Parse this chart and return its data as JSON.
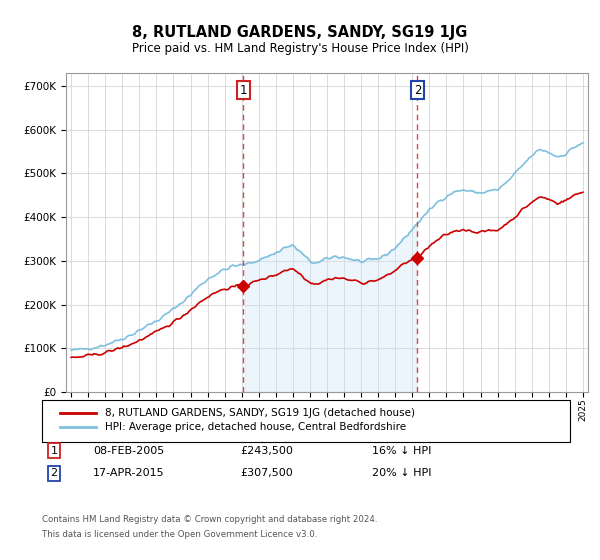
{
  "title": "8, RUTLAND GARDENS, SANDY, SG19 1JG",
  "subtitle": "Price paid vs. HM Land Registry's House Price Index (HPI)",
  "hpi_color": "#7fbfdf",
  "hpi_fill_color": "#c8e4f4",
  "price_color": "#cc0000",
  "sale1_date": "08-FEB-2005",
  "sale1_price": 243500,
  "sale1_label": "16% ↓ HPI",
  "sale1_x": 2005.1,
  "sale2_date": "17-APR-2015",
  "sale2_price": 307500,
  "sale2_label": "20% ↓ HPI",
  "sale2_x": 2015.3,
  "legend_line1": "8, RUTLAND GARDENS, SANDY, SG19 1JG (detached house)",
  "legend_line2": "HPI: Average price, detached house, Central Bedfordshire",
  "footer1": "Contains HM Land Registry data © Crown copyright and database right 2024.",
  "footer2": "This data is licensed under the Open Government Licence v3.0.",
  "ylim": [
    0,
    730000
  ],
  "xlim_min": 1994.7,
  "xlim_max": 2025.3
}
